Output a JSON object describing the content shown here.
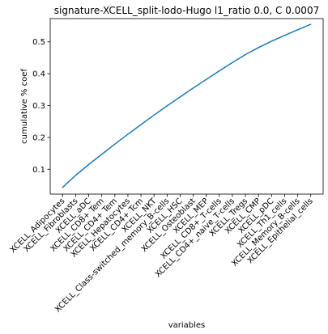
{
  "chart_data": {
    "type": "line",
    "title": "signature-XCELL_split-lodo-Hugo l1_ratio 0.0, C 0.0007",
    "xlabel": "variables",
    "ylabel": "cumulative % coef",
    "categories": [
      "XCELL_Adipocytes",
      "XCELL_Fibroblasts",
      "XCELL_aDC",
      "XCELL_CD8+ Tem",
      "XCELL_CD4+ Tem",
      "XCELL_Hepatocytes",
      "XCELL_CD4+ Tcm",
      "XCELL_NKT",
      "XCELL_Class-switched_memory_B-cells",
      "XCELL_HSC",
      "XCELL_Osteoblast",
      "XCELL_MEP",
      "XCELL_CD8+_T-cells",
      "XCELL_CD4+_naive_T-cells",
      "XCELL_Tregs",
      "XCELL_CMP",
      "XCELL_pDC",
      "XCELL_Th1_cells",
      "XCELL_Memory_B-cells",
      "XCELL_Epithelial_cells"
    ],
    "series": [
      {
        "values": [
          0.043,
          0.081,
          0.115,
          0.147,
          0.179,
          0.21,
          0.24,
          0.27,
          0.299,
          0.327,
          0.355,
          0.382,
          0.409,
          0.435,
          0.46,
          0.482,
          0.502,
          0.52,
          0.538,
          0.555
        ],
        "color": "#1f77b4"
      }
    ],
    "yticks": [
      0.1,
      0.2,
      0.3,
      0.4,
      0.5
    ],
    "ylim": [
      0.022,
      0.573
    ],
    "grid": false,
    "legend": "none"
  }
}
